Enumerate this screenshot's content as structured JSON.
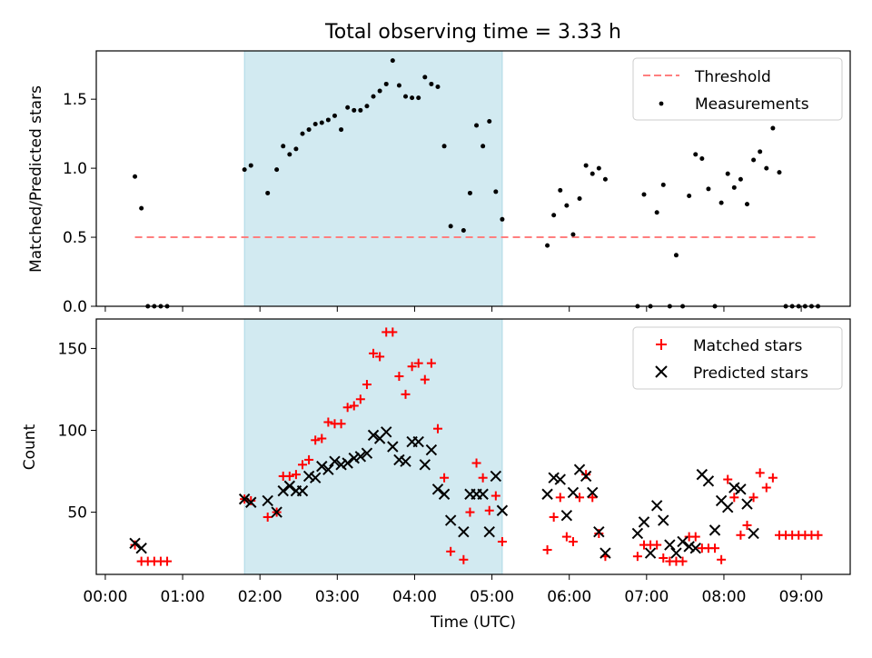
{
  "title": "Total observing time = 3.33 h",
  "colors": {
    "shade": "#add8e6",
    "threshold": "#ff7f7f",
    "measurement": "#000000",
    "matched": "#ff0000",
    "predicted": "#000000"
  },
  "chart_data": [
    {
      "type": "scatter",
      "ylabel": "Matched/Predicted stars",
      "ylim": [
        0,
        1.85
      ],
      "xlim": [
        "23:53",
        "09:38"
      ],
      "shaded_interval": [
        "01:48",
        "05:08"
      ],
      "legend": [
        "Threshold",
        "Measurements"
      ],
      "legend_position": "top-right",
      "threshold": {
        "name": "Threshold",
        "value": 0.5,
        "x": [
          "00:23",
          "09:13"
        ]
      },
      "series": [
        {
          "name": "Measurements",
          "points": [
            [
              "00:23",
              0.94
            ],
            [
              "00:28",
              0.71
            ],
            [
              "00:33",
              0
            ],
            [
              "00:38",
              0
            ],
            [
              "00:43",
              0
            ],
            [
              "00:48",
              0
            ],
            [
              "01:48",
              0.99
            ],
            [
              "01:53",
              1.02
            ],
            [
              "02:06",
              0.82
            ],
            [
              "02:13",
              0.99
            ],
            [
              "02:18",
              1.16
            ],
            [
              "02:23",
              1.1
            ],
            [
              "02:28",
              1.14
            ],
            [
              "02:33",
              1.25
            ],
            [
              "02:38",
              1.28
            ],
            [
              "02:43",
              1.32
            ],
            [
              "02:48",
              1.33
            ],
            [
              "02:53",
              1.35
            ],
            [
              "02:58",
              1.38
            ],
            [
              "03:03",
              1.28
            ],
            [
              "03:08",
              1.44
            ],
            [
              "03:13",
              1.42
            ],
            [
              "03:18",
              1.42
            ],
            [
              "03:23",
              1.45
            ],
            [
              "03:28",
              1.52
            ],
            [
              "03:33",
              1.56
            ],
            [
              "03:38",
              1.61
            ],
            [
              "03:43",
              1.78
            ],
            [
              "03:48",
              1.6
            ],
            [
              "03:53",
              1.52
            ],
            [
              "03:58",
              1.51
            ],
            [
              "04:03",
              1.51
            ],
            [
              "04:08",
              1.66
            ],
            [
              "04:13",
              1.61
            ],
            [
              "04:18",
              1.59
            ],
            [
              "04:23",
              1.16
            ],
            [
              "04:28",
              0.58
            ],
            [
              "04:38",
              0.55
            ],
            [
              "04:43",
              0.82
            ],
            [
              "04:48",
              1.31
            ],
            [
              "04:53",
              1.16
            ],
            [
              "04:58",
              1.34
            ],
            [
              "05:03",
              0.83
            ],
            [
              "05:08",
              0.63
            ],
            [
              "05:43",
              0.44
            ],
            [
              "05:48",
              0.66
            ],
            [
              "05:53",
              0.84
            ],
            [
              "05:58",
              0.73
            ],
            [
              "06:03",
              0.52
            ],
            [
              "06:08",
              0.78
            ],
            [
              "06:13",
              1.02
            ],
            [
              "06:18",
              0.96
            ],
            [
              "06:23",
              1.0
            ],
            [
              "06:28",
              0.92
            ],
            [
              "06:53",
              0
            ],
            [
              "06:58",
              0.81
            ],
            [
              "07:03",
              0
            ],
            [
              "07:08",
              0.68
            ],
            [
              "07:13",
              0.88
            ],
            [
              "07:18",
              0
            ],
            [
              "07:23",
              0.37
            ],
            [
              "07:28",
              0
            ],
            [
              "07:33",
              0.8
            ],
            [
              "07:38",
              1.1
            ],
            [
              "07:43",
              1.07
            ],
            [
              "07:48",
              0.85
            ],
            [
              "07:53",
              0
            ],
            [
              "07:58",
              0.75
            ],
            [
              "08:03",
              0.96
            ],
            [
              "08:08",
              0.86
            ],
            [
              "08:13",
              0.92
            ],
            [
              "08:18",
              0.74
            ],
            [
              "08:23",
              1.06
            ],
            [
              "08:28",
              1.12
            ],
            [
              "08:33",
              1.0
            ],
            [
              "08:38",
              1.29
            ],
            [
              "08:43",
              0.97
            ],
            [
              "08:48",
              0
            ],
            [
              "08:53",
              0
            ],
            [
              "08:58",
              0
            ],
            [
              "09:03",
              0
            ],
            [
              "09:08",
              0
            ],
            [
              "09:13",
              0
            ]
          ]
        }
      ]
    },
    {
      "type": "scatter",
      "xlabel": "Time (UTC)",
      "ylabel": "Count",
      "ylim": [
        12,
        168
      ],
      "xlim": [
        "23:53",
        "09:38"
      ],
      "shaded_interval": [
        "01:48",
        "05:08"
      ],
      "legend": [
        "Matched stars",
        "Predicted stars"
      ],
      "legend_position": "top-right",
      "x_tick_labels": [
        "00:00",
        "01:00",
        "02:00",
        "03:00",
        "04:00",
        "05:00",
        "06:00",
        "07:00",
        "08:00",
        "09:00"
      ],
      "series": [
        {
          "name": "Matched stars",
          "points": [
            [
              "00:23",
              30
            ],
            [
              "00:28",
              20
            ],
            [
              "00:33",
              20
            ],
            [
              "00:38",
              20
            ],
            [
              "00:43",
              20
            ],
            [
              "00:48",
              20
            ],
            [
              "01:48",
              58
            ],
            [
              "01:53",
              57
            ],
            [
              "02:06",
              47
            ],
            [
              "02:13",
              50
            ],
            [
              "02:18",
              72
            ],
            [
              "02:23",
              72
            ],
            [
              "02:28",
              73
            ],
            [
              "02:33",
              79
            ],
            [
              "02:38",
              82
            ],
            [
              "02:43",
              94
            ],
            [
              "02:48",
              95
            ],
            [
              "02:53",
              105
            ],
            [
              "02:58",
              104
            ],
            [
              "03:03",
              104
            ],
            [
              "03:08",
              114
            ],
            [
              "03:13",
              115
            ],
            [
              "03:18",
              119
            ],
            [
              "03:23",
              128
            ],
            [
              "03:28",
              147
            ],
            [
              "03:33",
              145
            ],
            [
              "03:38",
              160
            ],
            [
              "03:43",
              160
            ],
            [
              "03:48",
              133
            ],
            [
              "03:53",
              122
            ],
            [
              "03:58",
              139
            ],
            [
              "04:03",
              141
            ],
            [
              "04:08",
              131
            ],
            [
              "04:13",
              141
            ],
            [
              "04:18",
              101
            ],
            [
              "04:23",
              71
            ],
            [
              "04:28",
              26
            ],
            [
              "04:38",
              21
            ],
            [
              "04:43",
              50
            ],
            [
              "04:48",
              80
            ],
            [
              "04:53",
              71
            ],
            [
              "04:58",
              51
            ],
            [
              "05:03",
              60
            ],
            [
              "05:08",
              32
            ],
            [
              "05:43",
              27
            ],
            [
              "05:48",
              47
            ],
            [
              "05:53",
              59
            ],
            [
              "05:58",
              35
            ],
            [
              "06:03",
              32
            ],
            [
              "06:08",
              59
            ],
            [
              "06:13",
              73
            ],
            [
              "06:18",
              59
            ],
            [
              "06:23",
              37
            ],
            [
              "06:28",
              23
            ],
            [
              "06:53",
              23
            ],
            [
              "06:58",
              30
            ],
            [
              "07:03",
              30
            ],
            [
              "07:08",
              30
            ],
            [
              "07:13",
              22
            ],
            [
              "07:18",
              20
            ],
            [
              "07:23",
              20
            ],
            [
              "07:28",
              20
            ],
            [
              "07:33",
              35
            ],
            [
              "07:38",
              35
            ],
            [
              "07:43",
              28
            ],
            [
              "07:48",
              28
            ],
            [
              "07:53",
              28
            ],
            [
              "07:58",
              21
            ],
            [
              "08:03",
              70
            ],
            [
              "08:08",
              59
            ],
            [
              "08:13",
              36
            ],
            [
              "08:18",
              42
            ],
            [
              "08:23",
              59
            ],
            [
              "08:28",
              74
            ],
            [
              "08:33",
              65
            ],
            [
              "08:38",
              71
            ],
            [
              "08:43",
              36
            ],
            [
              "08:48",
              36
            ],
            [
              "08:53",
              36
            ],
            [
              "08:58",
              36
            ],
            [
              "09:03",
              36
            ],
            [
              "09:08",
              36
            ],
            [
              "09:13",
              36
            ]
          ]
        },
        {
          "name": "Predicted stars",
          "points": [
            [
              "00:23",
              31
            ],
            [
              "00:28",
              28
            ],
            [
              "01:48",
              58
            ],
            [
              "01:53",
              56
            ],
            [
              "02:06",
              57
            ],
            [
              "02:13",
              50
            ],
            [
              "02:18",
              63
            ],
            [
              "02:23",
              66
            ],
            [
              "02:28",
              63
            ],
            [
              "02:33",
              63
            ],
            [
              "02:38",
              72
            ],
            [
              "02:43",
              71
            ],
            [
              "02:48",
              78
            ],
            [
              "02:53",
              76
            ],
            [
              "02:58",
              81
            ],
            [
              "03:03",
              79
            ],
            [
              "03:08",
              80
            ],
            [
              "03:13",
              83
            ],
            [
              "03:18",
              84
            ],
            [
              "03:23",
              86
            ],
            [
              "03:28",
              97
            ],
            [
              "03:33",
              95
            ],
            [
              "03:38",
              99
            ],
            [
              "03:43",
              90
            ],
            [
              "03:48",
              82
            ],
            [
              "03:53",
              81
            ],
            [
              "03:58",
              93
            ],
            [
              "04:03",
              93
            ],
            [
              "04:08",
              79
            ],
            [
              "04:13",
              88
            ],
            [
              "04:18",
              64
            ],
            [
              "04:23",
              61
            ],
            [
              "04:28",
              45
            ],
            [
              "04:38",
              38
            ],
            [
              "04:43",
              61
            ],
            [
              "04:48",
              61
            ],
            [
              "04:53",
              61
            ],
            [
              "04:58",
              38
            ],
            [
              "05:03",
              72
            ],
            [
              "05:08",
              51
            ],
            [
              "05:43",
              61
            ],
            [
              "05:48",
              71
            ],
            [
              "05:53",
              70
            ],
            [
              "05:58",
              48
            ],
            [
              "06:03",
              62
            ],
            [
              "06:08",
              76
            ],
            [
              "06:13",
              72
            ],
            [
              "06:18",
              62
            ],
            [
              "06:23",
              38
            ],
            [
              "06:28",
              25
            ],
            [
              "06:53",
              37
            ],
            [
              "06:58",
              44
            ],
            [
              "07:03",
              25
            ],
            [
              "07:08",
              54
            ],
            [
              "07:13",
              45
            ],
            [
              "07:18",
              30
            ],
            [
              "07:23",
              25
            ],
            [
              "07:28",
              32
            ],
            [
              "07:33",
              29
            ],
            [
              "07:38",
              28
            ],
            [
              "07:43",
              73
            ],
            [
              "07:48",
              69
            ],
            [
              "07:53",
              39
            ],
            [
              "07:58",
              57
            ],
            [
              "08:03",
              53
            ],
            [
              "08:08",
              65
            ],
            [
              "08:13",
              64
            ],
            [
              "08:18",
              55
            ],
            [
              "08:23",
              37
            ]
          ]
        }
      ]
    }
  ]
}
